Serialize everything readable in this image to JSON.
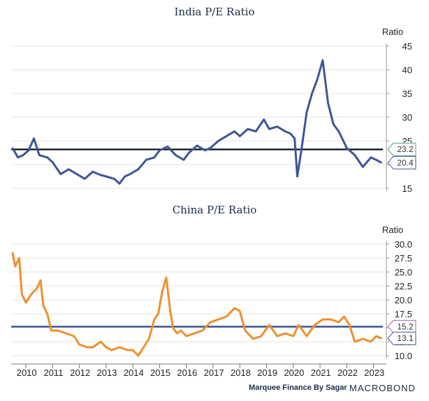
{
  "chart_data": [
    {
      "type": "line",
      "title": "India P/E Ratio",
      "ylabel": "Ratio",
      "ylim": [
        15,
        45
      ],
      "yticks": [
        15,
        20,
        25,
        30,
        35,
        40,
        45
      ],
      "line_color": "#3e5597",
      "reference_color": "#1b2338",
      "reference_value": 23.2,
      "reference_label": "23.2",
      "last_value": 20.4,
      "last_label": "20.4",
      "x": [
        2009.5,
        2009.7,
        2009.9,
        2010.1,
        2010.3,
        2010.5,
        2010.8,
        2011.0,
        2011.3,
        2011.6,
        2011.9,
        2012.2,
        2012.5,
        2012.8,
        2013.0,
        2013.3,
        2013.5,
        2013.7,
        2013.9,
        2014.2,
        2014.5,
        2014.8,
        2015.0,
        2015.3,
        2015.6,
        2015.9,
        2016.1,
        2016.4,
        2016.7,
        2016.9,
        2017.2,
        2017.5,
        2017.8,
        2018.0,
        2018.3,
        2018.6,
        2018.9,
        2019.1,
        2019.4,
        2019.7,
        2019.9,
        2020.05,
        2020.15,
        2020.3,
        2020.5,
        2020.7,
        2020.9,
        2021.1,
        2021.3,
        2021.5,
        2021.7,
        2022.0,
        2022.3,
        2022.6,
        2022.9,
        2023.1,
        2023.3
      ],
      "values": [
        23.5,
        21.5,
        22.0,
        23.0,
        25.5,
        22.0,
        21.5,
        20.5,
        18.0,
        19.0,
        18.0,
        17.0,
        18.5,
        17.8,
        17.5,
        17.0,
        16.0,
        17.5,
        18.0,
        19.0,
        21.0,
        21.5,
        23.0,
        23.8,
        22.0,
        21.0,
        22.5,
        24.0,
        23.0,
        23.5,
        25.0,
        26.0,
        27.0,
        26.0,
        27.5,
        27.0,
        29.5,
        27.5,
        28.0,
        27.0,
        26.5,
        25.5,
        17.5,
        23.0,
        31.0,
        35.0,
        38.0,
        42.0,
        33.0,
        28.5,
        27.0,
        23.5,
        22.0,
        19.5,
        21.5,
        21.0,
        20.4
      ],
      "xlim": [
        2009.45,
        2023.35
      ]
    },
    {
      "type": "line",
      "title": "China P/E Ratio",
      "ylabel": "Ratio",
      "ylim": [
        10.0,
        30.0
      ],
      "yticks": [
        10.0,
        12.5,
        15.0,
        17.5,
        20.0,
        22.5,
        25.0,
        27.5,
        30.0
      ],
      "ytick_labels": [
        "10.0",
        "12.5",
        "15.0",
        "17.5",
        "20.0",
        "22.5",
        "25.0",
        "27.5",
        "30.0"
      ],
      "line_color": "#f28e2b",
      "reference_color": "#3e5597",
      "reference_value": 15.2,
      "reference_label": "15.2",
      "last_value": 13.1,
      "last_label": "13.1",
      "x": [
        2009.5,
        2009.6,
        2009.75,
        2009.85,
        2010.0,
        2010.2,
        2010.4,
        2010.55,
        2010.65,
        2010.8,
        2010.95,
        2011.2,
        2011.5,
        2011.8,
        2012.0,
        2012.3,
        2012.5,
        2012.8,
        2013.0,
        2013.2,
        2013.5,
        2013.8,
        2014.0,
        2014.2,
        2014.4,
        2014.6,
        2014.8,
        2014.95,
        2015.1,
        2015.25,
        2015.4,
        2015.5,
        2015.65,
        2015.8,
        2016.0,
        2016.3,
        2016.6,
        2016.9,
        2017.2,
        2017.5,
        2017.8,
        2018.0,
        2018.2,
        2018.5,
        2018.8,
        2019.1,
        2019.4,
        2019.7,
        2020.0,
        2020.2,
        2020.5,
        2020.8,
        2021.1,
        2021.4,
        2021.7,
        2021.9,
        2022.1,
        2022.3,
        2022.6,
        2022.9,
        2023.1,
        2023.3
      ],
      "values": [
        28.5,
        26.0,
        27.5,
        21.0,
        19.5,
        21.0,
        22.0,
        23.5,
        19.0,
        17.5,
        14.5,
        14.5,
        14.0,
        13.5,
        12.0,
        11.5,
        11.5,
        12.5,
        11.5,
        11.0,
        11.5,
        11.0,
        11.0,
        10.0,
        11.5,
        13.0,
        16.5,
        17.5,
        21.5,
        24.0,
        18.0,
        15.0,
        14.0,
        14.5,
        13.5,
        14.0,
        14.5,
        16.0,
        16.5,
        17.0,
        18.5,
        18.0,
        14.5,
        13.0,
        13.5,
        15.5,
        13.5,
        14.0,
        13.5,
        15.5,
        13.5,
        15.5,
        16.5,
        16.5,
        16.0,
        17.0,
        15.5,
        12.5,
        13.0,
        12.5,
        13.5,
        13.1
      ],
      "xlim": [
        2009.45,
        2023.35
      ]
    }
  ],
  "shared_x_axis": {
    "tick_labels": [
      "2010",
      "2011",
      "2012",
      "2013",
      "2014",
      "2015",
      "2016",
      "2017",
      "2018",
      "2019",
      "2020",
      "2021",
      "2022",
      "2023"
    ]
  },
  "footer": {
    "attribution": "Marquee Finance By Sagar",
    "brand": "MACROBOND"
  }
}
